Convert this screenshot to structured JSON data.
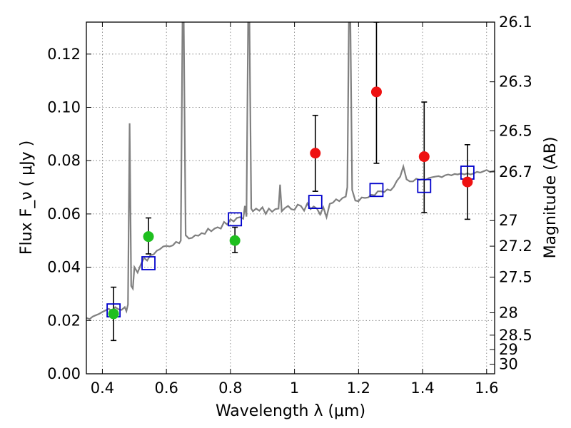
{
  "chart_data": {
    "type": "scatter",
    "xlabel": "Wavelength  λ (μm)",
    "ylabel": "Flux  F_ν  ( μJy )",
    "ylabel_right": "Magnitude (AB)",
    "xlim": [
      0.35,
      1.625
    ],
    "ylim": [
      0.0,
      0.132
    ],
    "grid": true,
    "x_ticks": [
      {
        "value": 0.4,
        "label": "0.4"
      },
      {
        "value": 0.6,
        "label": "0.6"
      },
      {
        "value": 0.8,
        "label": "0.8"
      },
      {
        "value": 1.0,
        "label": "1"
      },
      {
        "value": 1.2,
        "label": "1.2"
      },
      {
        "value": 1.4,
        "label": "1.4"
      },
      {
        "value": 1.6,
        "label": "1.6"
      }
    ],
    "y_ticks": [
      {
        "value": 0.0,
        "label": "0.00"
      },
      {
        "value": 0.02,
        "label": "0.02"
      },
      {
        "value": 0.04,
        "label": "0.04"
      },
      {
        "value": 0.06,
        "label": "0.06"
      },
      {
        "value": 0.08,
        "label": "0.08"
      },
      {
        "value": 0.1,
        "label": "0.10"
      },
      {
        "value": 0.12,
        "label": "0.12"
      }
    ],
    "right_ticks": [
      {
        "label": "26.1",
        "flux": 0.132
      },
      {
        "label": "26.3",
        "flux": 0.1096
      },
      {
        "label": "26.5",
        "flux": 0.0912
      },
      {
        "label": "26.7",
        "flux": 0.0758
      },
      {
        "label": "27",
        "flux": 0.0575
      },
      {
        "label": "27.2",
        "flux": 0.0479
      },
      {
        "label": "27.5",
        "flux": 0.0363
      },
      {
        "label": "28",
        "flux": 0.0229
      },
      {
        "label": "28.5",
        "flux": 0.0145
      },
      {
        "label": "29",
        "flux": 0.0091
      },
      {
        "label": "30",
        "flux": 0.0036
      }
    ],
    "colors": {
      "spectrum": "#808080",
      "model": "#0000cc",
      "green": "#1fbf1f",
      "red": "#ee1111",
      "errorbar": "#000000"
    },
    "spectrum": [
      [
        0.35,
        0.021
      ],
      [
        0.36,
        0.0205
      ],
      [
        0.37,
        0.0215
      ],
      [
        0.38,
        0.022
      ],
      [
        0.39,
        0.0225
      ],
      [
        0.4,
        0.0232
      ],
      [
        0.41,
        0.0238
      ],
      [
        0.42,
        0.0244
      ],
      [
        0.43,
        0.0236
      ],
      [
        0.44,
        0.025
      ],
      [
        0.45,
        0.0242
      ],
      [
        0.46,
        0.024
      ],
      [
        0.47,
        0.025
      ],
      [
        0.475,
        0.0235
      ],
      [
        0.48,
        0.026
      ],
      [
        0.485,
        0.094
      ],
      [
        0.49,
        0.033
      ],
      [
        0.495,
        0.032
      ],
      [
        0.5,
        0.04
      ],
      [
        0.51,
        0.038
      ],
      [
        0.52,
        0.041
      ],
      [
        0.53,
        0.0435
      ],
      [
        0.54,
        0.0425
      ],
      [
        0.55,
        0.0445
      ],
      [
        0.56,
        0.0448
      ],
      [
        0.57,
        0.0462
      ],
      [
        0.58,
        0.0468
      ],
      [
        0.59,
        0.0478
      ],
      [
        0.6,
        0.048
      ],
      [
        0.61,
        0.0478
      ],
      [
        0.62,
        0.0482
      ],
      [
        0.63,
        0.0495
      ],
      [
        0.64,
        0.049
      ],
      [
        0.645,
        0.05
      ],
      [
        0.652,
        0.16
      ],
      [
        0.66,
        0.052
      ],
      [
        0.67,
        0.0508
      ],
      [
        0.68,
        0.051
      ],
      [
        0.69,
        0.052
      ],
      [
        0.7,
        0.0518
      ],
      [
        0.71,
        0.0528
      ],
      [
        0.72,
        0.0525
      ],
      [
        0.73,
        0.0545
      ],
      [
        0.74,
        0.0535
      ],
      [
        0.75,
        0.0545
      ],
      [
        0.76,
        0.055
      ],
      [
        0.77,
        0.0545
      ],
      [
        0.78,
        0.057
      ],
      [
        0.79,
        0.056
      ],
      [
        0.8,
        0.058
      ],
      [
        0.81,
        0.0572
      ],
      [
        0.82,
        0.0585
      ],
      [
        0.83,
        0.0588
      ],
      [
        0.84,
        0.0582
      ],
      [
        0.845,
        0.063
      ],
      [
        0.85,
        0.059
      ],
      [
        0.857,
        0.16
      ],
      [
        0.865,
        0.062
      ],
      [
        0.87,
        0.061
      ],
      [
        0.88,
        0.062
      ],
      [
        0.89,
        0.0612
      ],
      [
        0.9,
        0.0625
      ],
      [
        0.91,
        0.06
      ],
      [
        0.92,
        0.062
      ],
      [
        0.93,
        0.0608
      ],
      [
        0.94,
        0.0618
      ],
      [
        0.95,
        0.062
      ],
      [
        0.955,
        0.071
      ],
      [
        0.96,
        0.061
      ],
      [
        0.97,
        0.0622
      ],
      [
        0.98,
        0.063
      ],
      [
        0.99,
        0.0618
      ],
      [
        1.0,
        0.0615
      ],
      [
        1.01,
        0.0635
      ],
      [
        1.02,
        0.063
      ],
      [
        1.03,
        0.0612
      ],
      [
        1.04,
        0.064
      ],
      [
        1.05,
        0.0618
      ],
      [
        1.06,
        0.0628
      ],
      [
        1.07,
        0.062
      ],
      [
        1.08,
        0.0598
      ],
      [
        1.09,
        0.0625
      ],
      [
        1.1,
        0.0588
      ],
      [
        1.11,
        0.0638
      ],
      [
        1.12,
        0.0642
      ],
      [
        1.13,
        0.0655
      ],
      [
        1.14,
        0.0648
      ],
      [
        1.15,
        0.066
      ],
      [
        1.16,
        0.0665
      ],
      [
        1.165,
        0.07
      ],
      [
        1.172,
        0.16
      ],
      [
        1.18,
        0.069
      ],
      [
        1.19,
        0.065
      ],
      [
        1.2,
        0.0648
      ],
      [
        1.21,
        0.0662
      ],
      [
        1.22,
        0.066
      ],
      [
        1.23,
        0.0662
      ],
      [
        1.24,
        0.0672
      ],
      [
        1.25,
        0.067
      ],
      [
        1.26,
        0.0685
      ],
      [
        1.27,
        0.0685
      ],
      [
        1.28,
        0.0682
      ],
      [
        1.29,
        0.0692
      ],
      [
        1.3,
        0.0688
      ],
      [
        1.31,
        0.0702
      ],
      [
        1.32,
        0.0725
      ],
      [
        1.33,
        0.074
      ],
      [
        1.34,
        0.0778
      ],
      [
        1.35,
        0.073
      ],
      [
        1.36,
        0.0722
      ],
      [
        1.37,
        0.0722
      ],
      [
        1.38,
        0.0732
      ],
      [
        1.39,
        0.0728
      ],
      [
        1.4,
        0.073
      ],
      [
        1.41,
        0.0728
      ],
      [
        1.42,
        0.0735
      ],
      [
        1.43,
        0.0738
      ],
      [
        1.44,
        0.074
      ],
      [
        1.45,
        0.0742
      ],
      [
        1.46,
        0.0738
      ],
      [
        1.47,
        0.0745
      ],
      [
        1.48,
        0.0748
      ],
      [
        1.49,
        0.0745
      ],
      [
        1.5,
        0.075
      ],
      [
        1.51,
        0.0748
      ],
      [
        1.52,
        0.0752
      ],
      [
        1.53,
        0.0748
      ],
      [
        1.54,
        0.0752
      ],
      [
        1.55,
        0.0748
      ],
      [
        1.56,
        0.0752
      ],
      [
        1.57,
        0.0758
      ],
      [
        1.58,
        0.0755
      ],
      [
        1.59,
        0.076
      ],
      [
        1.6,
        0.0765
      ],
      [
        1.61,
        0.0758
      ],
      [
        1.625,
        0.0762
      ]
    ],
    "model_points": [
      {
        "x": 0.435,
        "y": 0.0238
      },
      {
        "x": 0.544,
        "y": 0.0415
      },
      {
        "x": 0.814,
        "y": 0.058
      },
      {
        "x": 1.065,
        "y": 0.0645
      },
      {
        "x": 1.256,
        "y": 0.069
      },
      {
        "x": 1.405,
        "y": 0.0705
      },
      {
        "x": 1.54,
        "y": 0.0755
      }
    ],
    "green_points": [
      {
        "x": 0.435,
        "y": 0.0225,
        "err_low": 0.0125,
        "err_high": 0.0325
      },
      {
        "x": 0.544,
        "y": 0.0515,
        "err_low": 0.045,
        "err_high": 0.0585
      },
      {
        "x": 0.814,
        "y": 0.05,
        "err_low": 0.0455,
        "err_high": 0.055
      }
    ],
    "red_points": [
      {
        "x": 1.065,
        "y": 0.0828,
        "err_low": 0.0685,
        "err_high": 0.097
      },
      {
        "x": 1.256,
        "y": 0.1058,
        "err_low": 0.079,
        "err_high": 0.132
      },
      {
        "x": 1.405,
        "y": 0.0815,
        "err_low": 0.0605,
        "err_high": 0.102
      },
      {
        "x": 1.54,
        "y": 0.072,
        "err_low": 0.058,
        "err_high": 0.086
      }
    ]
  }
}
